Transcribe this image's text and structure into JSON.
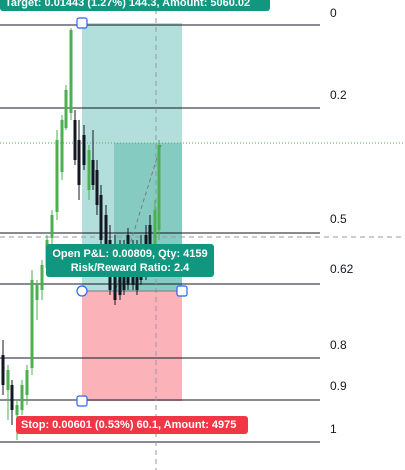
{
  "position_tool": {
    "target_label": "Target: 0.01443 (1.27%) 144.3, Amount: 5060.02",
    "stop_label": "Stop: 0.00601 (0.53%) 60.1, Amount: 4975",
    "pnl_line1": "Open P&L: 0.00809, Qty: 4159",
    "pnl_line2": "Risk/Reward Ratio: 2.4",
    "target_color": "#11967f",
    "stop_color": "#f23645",
    "profit_zone_color": "#b2dfdb",
    "loss_zone_color": "#fbb3b9"
  },
  "fib_levels": [
    {
      "label": "0"
    },
    {
      "label": "0.2"
    },
    {
      "label": "0.5"
    },
    {
      "label": "0.62"
    },
    {
      "label": "0.8"
    },
    {
      "label": "0.9"
    },
    {
      "label": "1"
    }
  ],
  "colors": {
    "bull_candle": "#4caf50",
    "bear_candle": "#131722",
    "fib_line": "#131722",
    "crosshair": "#9598a1",
    "price_line": "#4caf50"
  }
}
